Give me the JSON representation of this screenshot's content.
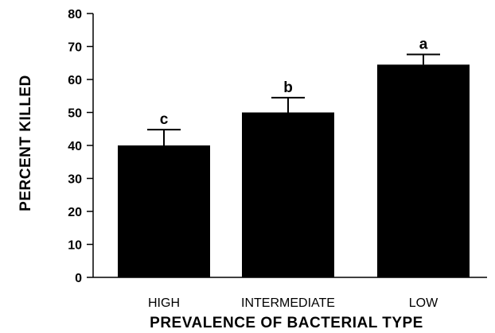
{
  "chart_data": {
    "type": "bar",
    "categories": [
      "HIGH",
      "INTERMEDIATE",
      "LOW"
    ],
    "values": [
      40,
      50,
      64.5
    ],
    "error_upper": [
      44.8,
      54.5,
      67.6
    ],
    "annotations": [
      "c",
      "b",
      "a"
    ],
    "xlabel": "PREVALENCE OF BACTERIAL TYPE",
    "ylabel": "PERCENT KILLED",
    "ylim": [
      0,
      80
    ],
    "yticks": [
      0,
      10,
      20,
      30,
      40,
      50,
      60,
      70,
      80
    ],
    "grid": false,
    "bar_color": "#000000"
  }
}
